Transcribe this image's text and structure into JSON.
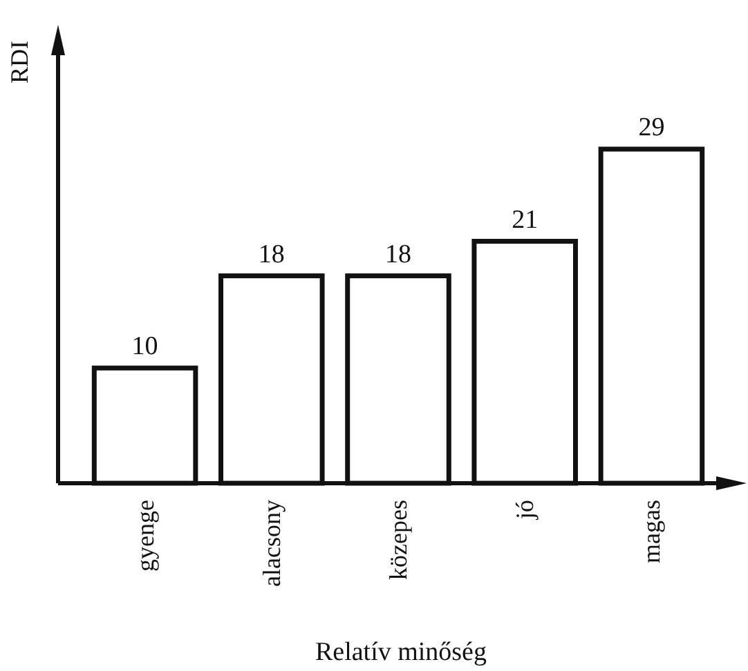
{
  "chart_data": {
    "type": "bar",
    "ylabel": "RDI",
    "xlabel": "Relatív minőség",
    "categories": [
      "gyenge",
      "alacsony",
      "közepes",
      "jó",
      "magas"
    ],
    "values": [
      10,
      18,
      18,
      21,
      29
    ],
    "color": "#ffffff",
    "data_labels": true
  }
}
